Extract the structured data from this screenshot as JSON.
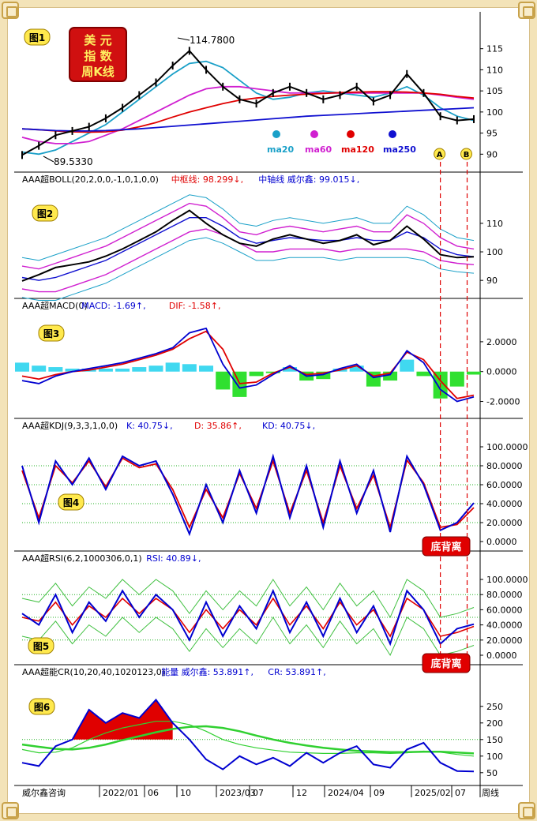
{
  "title_stamp": {
    "line1": "美 元",
    "line2": "指 数",
    "line3": "周K线"
  },
  "panels": [
    {
      "tag": "图1"
    },
    {
      "tag": "图2",
      "header": "AAA超BOLL(20,2,0,0,-1,0,1,0,0)",
      "items": [
        {
          "text": "中枢线: 98.299↓,",
          "color": "#e00000"
        },
        {
          "text": "中轴线 威尔鑫: 99.015↓,",
          "color": "#0000d0"
        }
      ]
    },
    {
      "tag": "图3",
      "header": "AAA超MACD(0)",
      "items": [
        {
          "text": "MACD: -1.69↑,",
          "color": "#0000d0"
        },
        {
          "text": "DIF: -1.58↑,",
          "color": "#e00000"
        }
      ]
    },
    {
      "tag": "图4",
      "header": "AAA超KDJ(9,3,3,1,0,0)",
      "items": [
        {
          "text": "K: 40.75↓,",
          "color": "#0000d0"
        },
        {
          "text": "D: 35.86↑,",
          "color": "#e00000"
        },
        {
          "text": "KD: 40.75↓,",
          "color": "#0000d0"
        }
      ]
    },
    {
      "tag": "图5",
      "header": "AAA超RSI(6,2,1000306,0,1)",
      "items": [
        {
          "text": "RSI: 40.89↓,",
          "color": "#0000d0"
        }
      ]
    },
    {
      "tag": "图6",
      "header": "AAA超能CR(10,20,40,1020123,0)",
      "items": [
        {
          "text": "能量 威尔鑫: 53.891↑,",
          "color": "#0000d0"
        },
        {
          "text": "CR: 53.891↑,",
          "color": "#0000d0"
        }
      ]
    }
  ],
  "annotations": {
    "high": "114.7800",
    "low": "89.5330",
    "marker_a": "A",
    "marker_b": "B",
    "divergence_kdj": "底背离",
    "divergence_rsi": "底背离"
  },
  "ma_legend": [
    {
      "label": "ma20",
      "color": "#1aa0c8"
    },
    {
      "label": "ma60",
      "color": "#d020d0"
    },
    {
      "label": "ma120",
      "color": "#e00000"
    },
    {
      "label": "ma250",
      "color": "#1010d0"
    }
  ],
  "footer": {
    "brand": "威尔鑫咨询",
    "period": "周线",
    "x_ticks": [
      "2022/01",
      "06",
      "10",
      "2023/03",
      "07",
      "12",
      "2024/04",
      "09",
      "2025/02",
      "07"
    ]
  },
  "chart_data": [
    {
      "type": "line",
      "panel": "图1",
      "y_ticks": [
        "115",
        "110",
        "105",
        "100",
        "95",
        "90"
      ],
      "ylim": [
        88,
        117
      ],
      "series": [
        {
          "name": "ma20",
          "values": [
            90.5,
            90,
            91,
            93,
            95,
            97,
            100,
            103,
            106,
            109,
            111.5,
            112,
            110.5,
            107.5,
            104.5,
            103,
            103.5,
            104.5,
            105,
            104.5,
            104,
            103.5,
            104.5,
            106,
            104,
            101,
            99,
            98
          ]
        },
        {
          "name": "ma60",
          "values": [
            94,
            93,
            92.5,
            92.5,
            93,
            94.5,
            96,
            98,
            100,
            102,
            104,
            105.5,
            106,
            106,
            105.5,
            105,
            104.5,
            104.5,
            104.5,
            104.5,
            104.5,
            104.5,
            104.5,
            104.5,
            104.5,
            104,
            103.5,
            103
          ]
        },
        {
          "name": "ma120",
          "values": [
            96,
            95.8,
            95.5,
            95.3,
            95.2,
            95.3,
            95.7,
            96.5,
            97.5,
            98.8,
            100,
            101,
            102,
            102.8,
            103.3,
            103.7,
            104,
            104.2,
            104.4,
            104.6,
            104.7,
            104.8,
            104.8,
            104.7,
            104.5,
            104.2,
            103.7,
            103.3
          ]
        },
        {
          "name": "ma250",
          "values": [
            96,
            95.8,
            95.6,
            95.5,
            95.5,
            95.6,
            95.8,
            96,
            96.3,
            96.6,
            96.9,
            97.2,
            97.5,
            97.8,
            98.1,
            98.4,
            98.7,
            99,
            99.2,
            99.4,
            99.6,
            99.8,
            100,
            100.2,
            100.4,
            100.6,
            100.8,
            101
          ]
        },
        {
          "name": "close",
          "values": [
            89.8,
            92,
            94.5,
            95.5,
            96.5,
            98.5,
            101,
            104,
            107,
            111,
            114.5,
            110,
            106,
            103,
            102,
            104.5,
            106,
            104.5,
            103,
            104,
            106,
            102.5,
            104,
            109,
            104.5,
            99,
            98,
            98.3
          ]
        }
      ]
    },
    {
      "type": "line",
      "panel": "图2",
      "y_ticks": [
        "110",
        "100",
        "90"
      ],
      "ylim": [
        87,
        118
      ],
      "series": [
        {
          "name": "upper",
          "values": [
            95,
            94,
            96,
            98,
            100,
            102,
            105,
            108,
            111,
            114,
            117,
            116,
            112,
            107,
            106,
            108,
            109,
            108,
            107,
            108,
            109,
            107,
            107,
            113,
            110,
            105,
            102,
            101
          ]
        },
        {
          "name": "middle",
          "values": [
            91,
            90,
            91,
            93,
            95,
            97,
            100,
            103,
            106,
            109,
            112,
            112,
            109,
            105,
            103,
            104,
            105,
            104.5,
            104,
            104,
            105,
            104,
            104,
            107,
            105,
            101,
            99,
            98.3
          ]
        },
        {
          "name": "lower",
          "values": [
            87,
            86,
            86,
            88,
            90,
            92,
            95,
            98,
            101,
            104,
            107,
            108,
            106,
            103,
            100,
            100,
            101,
            101,
            101,
            100,
            101,
            101,
            101,
            101,
            100,
            97,
            96,
            95.5
          ]
        },
        {
          "name": "close",
          "values": [
            89.8,
            92,
            94.5,
            95.5,
            96.5,
            98.5,
            101,
            104,
            107,
            111,
            114.5,
            110,
            106,
            103,
            102,
            104.5,
            106,
            104.5,
            103,
            104,
            106,
            102.5,
            104,
            109,
            104.5,
            99,
            98,
            98.3
          ]
        }
      ]
    },
    {
      "type": "line",
      "panel": "图3",
      "y_ticks": [
        "2.0000",
        "0.0000",
        "-2.0000"
      ],
      "ylim": [
        -2.5,
        3
      ],
      "series": [
        {
          "name": "MACD",
          "values": [
            -0.6,
            -0.8,
            -0.3,
            0,
            0.2,
            0.4,
            0.6,
            0.9,
            1.2,
            1.6,
            2.6,
            2.9,
            0.5,
            -1.1,
            -0.9,
            -0.2,
            0.4,
            -0.3,
            -0.2,
            0.2,
            0.5,
            -0.4,
            -0.2,
            1.4,
            0.6,
            -1.2,
            -2.0,
            -1.69
          ]
        },
        {
          "name": "DIF",
          "values": [
            -0.3,
            -0.5,
            -0.2,
            0,
            0.1,
            0.3,
            0.5,
            0.8,
            1.1,
            1.5,
            2.2,
            2.7,
            1.5,
            -0.8,
            -0.7,
            -0.1,
            0.3,
            -0.2,
            -0.1,
            0.1,
            0.4,
            -0.3,
            -0.1,
            1.3,
            0.8,
            -0.6,
            -1.8,
            -1.58
          ]
        },
        {
          "name": "hist",
          "values": [
            0.6,
            0.4,
            0.3,
            0.2,
            0.2,
            0.2,
            0.2,
            0.3,
            0.4,
            0.6,
            0.5,
            0.4,
            -1.2,
            -1.7,
            -0.3,
            -0.1,
            0.3,
            -0.6,
            -0.5,
            0.2,
            0.4,
            -1.0,
            -0.6,
            0.8,
            -0.3,
            -1.8,
            -1.0,
            -0.2
          ]
        }
      ]
    },
    {
      "type": "line",
      "panel": "图4",
      "y_ticks": [
        "100.0000",
        "80.0000",
        "60.0000",
        "40.0000",
        "20.0000",
        "0.0000"
      ],
      "ylim": [
        0,
        100
      ],
      "series": [
        {
          "name": "K",
          "values": [
            80,
            20,
            85,
            60,
            88,
            55,
            90,
            80,
            85,
            50,
            8,
            60,
            20,
            75,
            30,
            90,
            25,
            80,
            15,
            85,
            30,
            75,
            10,
            90,
            60,
            12,
            20,
            40.75
          ]
        },
        {
          "name": "D",
          "values": [
            75,
            25,
            80,
            62,
            85,
            58,
            88,
            78,
            82,
            55,
            15,
            55,
            25,
            72,
            35,
            85,
            30,
            75,
            20,
            80,
            35,
            70,
            15,
            86,
            62,
            15,
            18,
            35.86
          ]
        }
      ]
    },
    {
      "type": "line",
      "panel": "图5",
      "y_ticks": [
        "100.0000",
        "80.0000",
        "60.0000",
        "40.0000",
        "20.0000",
        "0.0000"
      ],
      "ylim": [
        0,
        100
      ],
      "series": [
        {
          "name": "RSI",
          "values": [
            55,
            40,
            80,
            30,
            70,
            45,
            85,
            50,
            80,
            60,
            20,
            70,
            25,
            65,
            35,
            85,
            30,
            70,
            25,
            75,
            30,
            65,
            15,
            85,
            60,
            15,
            35,
            40.89
          ]
        },
        {
          "name": "RSI-MA",
          "values": [
            50,
            45,
            70,
            40,
            65,
            50,
            75,
            55,
            75,
            60,
            30,
            60,
            35,
            60,
            40,
            75,
            40,
            65,
            35,
            70,
            40,
            60,
            25,
            75,
            60,
            25,
            30,
            38
          ]
        }
      ]
    },
    {
      "type": "line",
      "panel": "图6",
      "y_ticks": [
        "250",
        "200",
        "150",
        "100",
        "50"
      ],
      "ylim": [
        40,
        290
      ],
      "series": [
        {
          "name": "CR",
          "values": [
            80,
            70,
            130,
            150,
            240,
            200,
            230,
            215,
            270,
            200,
            150,
            90,
            60,
            100,
            75,
            95,
            70,
            110,
            80,
            110,
            130,
            75,
            65,
            120,
            140,
            80,
            55,
            53.891
          ]
        },
        {
          "name": "CR-MA1",
          "values": [
            120,
            110,
            112,
            125,
            150,
            170,
            185,
            195,
            205,
            205,
            195,
            175,
            150,
            135,
            125,
            118,
            112,
            110,
            108,
            108,
            110,
            110,
            108,
            110,
            115,
            112,
            105,
            100
          ]
        },
        {
          "name": "CR-MA2",
          "values": [
            135,
            128,
            122,
            120,
            125,
            135,
            148,
            160,
            172,
            182,
            188,
            190,
            185,
            175,
            162,
            150,
            140,
            132,
            125,
            120,
            116,
            114,
            112,
            112,
            113,
            113,
            111,
            108
          ]
        }
      ]
    }
  ]
}
